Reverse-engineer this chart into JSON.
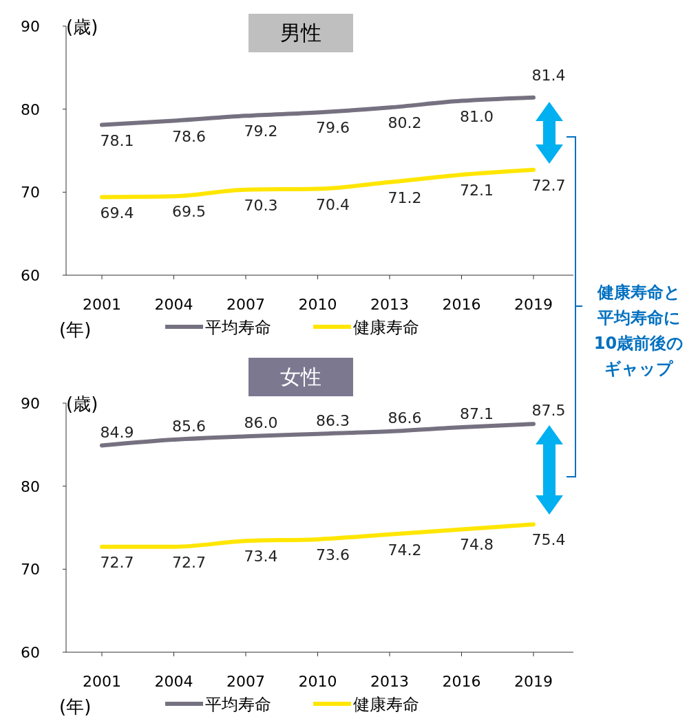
{
  "chart_data": [
    {
      "type": "line",
      "title": "男性",
      "ylabel": "(歳)",
      "xlabel": "(年)",
      "categories": [
        "2001",
        "2004",
        "2007",
        "2010",
        "2013",
        "2016",
        "2019"
      ],
      "ylim": [
        60,
        90
      ],
      "yticks": [
        60,
        70,
        80,
        90
      ],
      "legend": "bottom",
      "grid": false,
      "series": [
        {
          "name": "平均寿命",
          "color": "#767180",
          "values": [
            78.1,
            78.6,
            79.2,
            79.6,
            80.2,
            81.0,
            81.4
          ],
          "value_labels": [
            "78.1",
            "78.6",
            "79.2",
            "79.6",
            "80.2",
            "81.0",
            "81.4"
          ]
        },
        {
          "name": "健康寿命",
          "color": "#ffe600",
          "values": [
            69.4,
            69.5,
            70.3,
            70.4,
            71.2,
            72.1,
            72.7
          ],
          "value_labels": [
            "69.4",
            "69.5",
            "70.3",
            "70.4",
            "71.2",
            "72.1",
            "72.7"
          ]
        }
      ],
      "annotations": [
        "健康寿命と",
        "平均寿命に",
        "10歳前後の",
        "ギャップ"
      ]
    },
    {
      "type": "line",
      "title": "女性",
      "ylabel": "(歳)",
      "xlabel": "(年)",
      "categories": [
        "2001",
        "2004",
        "2007",
        "2010",
        "2013",
        "2016",
        "2019"
      ],
      "ylim": [
        60,
        90
      ],
      "yticks": [
        60,
        70,
        80,
        90
      ],
      "legend": "bottom",
      "grid": false,
      "series": [
        {
          "name": "平均寿命",
          "color": "#767180",
          "values": [
            84.9,
            85.6,
            86.0,
            86.3,
            86.6,
            87.1,
            87.5
          ],
          "value_labels": [
            "84.9",
            "85.6",
            "86.0",
            "86.3",
            "86.6",
            "87.1",
            "87.5"
          ]
        },
        {
          "name": "健康寿命",
          "color": "#ffe600",
          "values": [
            72.7,
            72.7,
            73.4,
            73.6,
            74.2,
            74.8,
            75.4
          ],
          "value_labels": [
            "72.7",
            "72.7",
            "73.4",
            "73.6",
            "74.2",
            "74.8",
            "75.4"
          ]
        }
      ]
    }
  ]
}
